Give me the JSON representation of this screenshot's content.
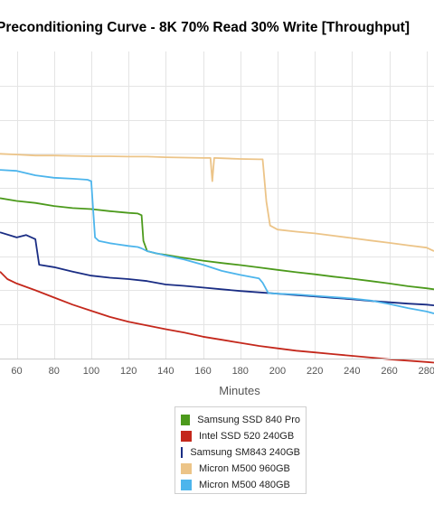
{
  "chart_data": {
    "type": "line",
    "title": "Preconditioning Curve - 8K 70% Read 30% Write [Throughput]",
    "xlabel": "Minutes",
    "ylabel": "",
    "x_ticks": [
      60,
      80,
      100,
      120,
      140,
      160,
      180,
      200,
      220,
      240,
      260,
      280
    ],
    "xlim": [
      51,
      284
    ],
    "ylim": [
      0,
      9
    ],
    "grid": true,
    "legend_position": "bottom-center",
    "series": [
      {
        "name": "Samsung SSD 840 Pro",
        "color": "#4c9a1c",
        "points": [
          [
            51,
            4.7
          ],
          [
            60,
            4.62
          ],
          [
            70,
            4.56
          ],
          [
            80,
            4.47
          ],
          [
            90,
            4.41
          ],
          [
            100,
            4.38
          ],
          [
            110,
            4.32
          ],
          [
            120,
            4.27
          ],
          [
            125,
            4.25
          ],
          [
            127,
            4.2
          ],
          [
            128,
            3.45
          ],
          [
            130,
            3.15
          ],
          [
            135,
            3.08
          ],
          [
            140,
            3.04
          ],
          [
            150,
            2.95
          ],
          [
            160,
            2.87
          ],
          [
            170,
            2.8
          ],
          [
            180,
            2.74
          ],
          [
            190,
            2.67
          ],
          [
            200,
            2.6
          ],
          [
            210,
            2.53
          ],
          [
            220,
            2.47
          ],
          [
            230,
            2.4
          ],
          [
            240,
            2.34
          ],
          [
            250,
            2.27
          ],
          [
            260,
            2.2
          ],
          [
            270,
            2.12
          ],
          [
            280,
            2.06
          ],
          [
            284,
            2.03
          ]
        ]
      },
      {
        "name": "Intel SSD 520 240GB",
        "color": "#c4281c",
        "points": [
          [
            51,
            2.55
          ],
          [
            55,
            2.33
          ],
          [
            60,
            2.2
          ],
          [
            70,
            2.0
          ],
          [
            80,
            1.79
          ],
          [
            90,
            1.58
          ],
          [
            100,
            1.4
          ],
          [
            110,
            1.22
          ],
          [
            120,
            1.08
          ],
          [
            130,
            0.97
          ],
          [
            140,
            0.86
          ],
          [
            150,
            0.76
          ],
          [
            160,
            0.64
          ],
          [
            170,
            0.55
          ],
          [
            180,
            0.46
          ],
          [
            190,
            0.37
          ],
          [
            200,
            0.3
          ],
          [
            210,
            0.23
          ],
          [
            220,
            0.18
          ],
          [
            230,
            0.13
          ],
          [
            240,
            0.08
          ],
          [
            250,
            0.03
          ],
          [
            260,
            -0.02
          ],
          [
            270,
            -0.06
          ],
          [
            280,
            -0.1
          ],
          [
            284,
            -0.12
          ]
        ]
      },
      {
        "name": "Samsung SM843 240GB",
        "color": "#1a2d84",
        "points": [
          [
            51,
            3.7
          ],
          [
            60,
            3.55
          ],
          [
            65,
            3.62
          ],
          [
            70,
            3.5
          ],
          [
            72,
            2.75
          ],
          [
            80,
            2.68
          ],
          [
            90,
            2.55
          ],
          [
            100,
            2.43
          ],
          [
            110,
            2.37
          ],
          [
            120,
            2.33
          ],
          [
            130,
            2.27
          ],
          [
            140,
            2.17
          ],
          [
            150,
            2.13
          ],
          [
            160,
            2.08
          ],
          [
            170,
            2.03
          ],
          [
            180,
            1.98
          ],
          [
            190,
            1.94
          ],
          [
            200,
            1.9
          ],
          [
            210,
            1.86
          ],
          [
            220,
            1.82
          ],
          [
            230,
            1.78
          ],
          [
            240,
            1.74
          ],
          [
            250,
            1.69
          ],
          [
            260,
            1.65
          ],
          [
            270,
            1.61
          ],
          [
            280,
            1.58
          ],
          [
            284,
            1.56
          ]
        ]
      },
      {
        "name": "Micron M500 960GB",
        "color": "#ecc488",
        "points": [
          [
            51,
            6.0
          ],
          [
            60,
            5.98
          ],
          [
            70,
            5.95
          ],
          [
            80,
            5.95
          ],
          [
            90,
            5.94
          ],
          [
            100,
            5.93
          ],
          [
            110,
            5.93
          ],
          [
            120,
            5.92
          ],
          [
            130,
            5.92
          ],
          [
            140,
            5.9
          ],
          [
            150,
            5.89
          ],
          [
            160,
            5.88
          ],
          [
            164,
            5.88
          ],
          [
            165,
            5.2
          ],
          [
            166,
            5.88
          ],
          [
            170,
            5.87
          ],
          [
            180,
            5.85
          ],
          [
            190,
            5.84
          ],
          [
            192,
            5.84
          ],
          [
            194,
            4.6
          ],
          [
            196,
            3.9
          ],
          [
            200,
            3.78
          ],
          [
            210,
            3.72
          ],
          [
            220,
            3.67
          ],
          [
            230,
            3.6
          ],
          [
            240,
            3.53
          ],
          [
            250,
            3.46
          ],
          [
            260,
            3.39
          ],
          [
            270,
            3.32
          ],
          [
            280,
            3.25
          ],
          [
            284,
            3.15
          ]
        ]
      },
      {
        "name": "Micron M500 480GB",
        "color": "#4db5ec",
        "points": [
          [
            51,
            5.53
          ],
          [
            60,
            5.5
          ],
          [
            70,
            5.37
          ],
          [
            80,
            5.3
          ],
          [
            90,
            5.27
          ],
          [
            98,
            5.24
          ],
          [
            100,
            5.2
          ],
          [
            102,
            3.55
          ],
          [
            104,
            3.45
          ],
          [
            110,
            3.38
          ],
          [
            120,
            3.3
          ],
          [
            125,
            3.27
          ],
          [
            127,
            3.23
          ],
          [
            130,
            3.15
          ],
          [
            140,
            3.02
          ],
          [
            150,
            2.9
          ],
          [
            160,
            2.75
          ],
          [
            170,
            2.57
          ],
          [
            180,
            2.45
          ],
          [
            190,
            2.35
          ],
          [
            192,
            2.22
          ],
          [
            195,
            1.92
          ],
          [
            200,
            1.9
          ],
          [
            210,
            1.88
          ],
          [
            220,
            1.84
          ],
          [
            230,
            1.8
          ],
          [
            240,
            1.76
          ],
          [
            250,
            1.7
          ],
          [
            260,
            1.6
          ],
          [
            270,
            1.48
          ],
          [
            280,
            1.38
          ],
          [
            284,
            1.32
          ]
        ]
      }
    ]
  },
  "legend": {
    "items": [
      {
        "label": "Samsung SSD 840 Pro",
        "color": "#4c9a1c"
      },
      {
        "label": "Intel SSD 520 240GB",
        "color": "#c4281c"
      },
      {
        "label": "Samsung SM843 240GB",
        "color": "#1a2d84"
      },
      {
        "label": "Micron M500 960GB",
        "color": "#ecc488"
      },
      {
        "label": "Micron M500 480GB",
        "color": "#4db5ec"
      }
    ]
  }
}
